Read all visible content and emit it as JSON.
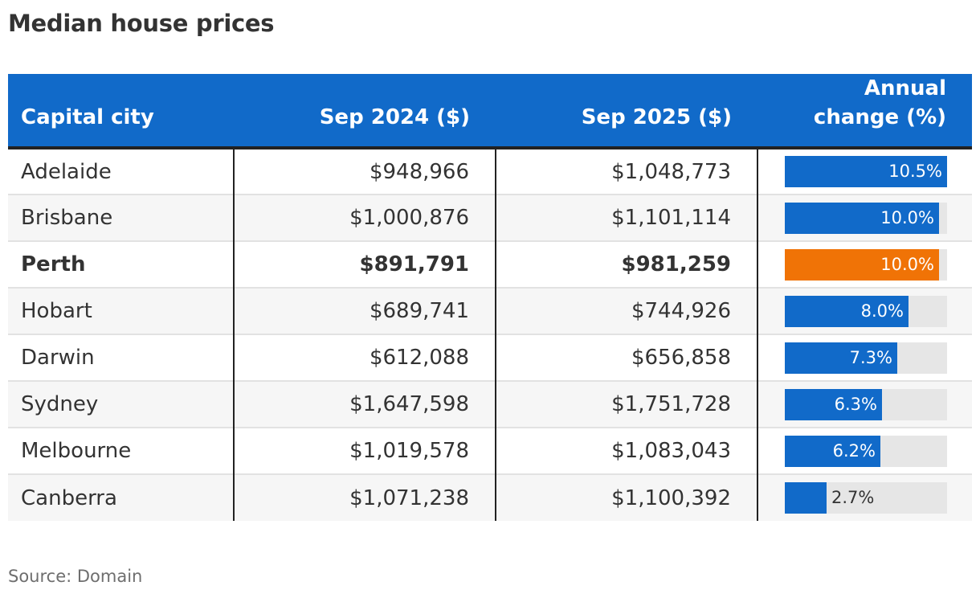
{
  "title": "Median house prices",
  "source": "Source: Domain",
  "colors": {
    "header": "#116ac9",
    "bar": "#116ac9",
    "highlight_bar": "#f07306",
    "track": "#e6e6e6"
  },
  "chart_data": {
    "type": "table",
    "title": "Median house prices",
    "columns": [
      "Capital city",
      "Sep 2024 ($)",
      "Sep 2025 ($)",
      "Annual change (%)"
    ],
    "bar_max": 10.5,
    "rows": [
      {
        "city": "Adelaide",
        "sep2024": "$948,966",
        "sep2025": "$1,048,773",
        "change": 10.5,
        "change_label": "10.5%",
        "highlight": false
      },
      {
        "city": "Brisbane",
        "sep2024": "$1,000,876",
        "sep2025": "$1,101,114",
        "change": 10.0,
        "change_label": "10.0%",
        "highlight": false
      },
      {
        "city": "Perth",
        "sep2024": "$891,791",
        "sep2025": "$981,259",
        "change": 10.0,
        "change_label": "10.0%",
        "highlight": true
      },
      {
        "city": "Hobart",
        "sep2024": "$689,741",
        "sep2025": "$744,926",
        "change": 8.0,
        "change_label": "8.0%",
        "highlight": false
      },
      {
        "city": "Darwin",
        "sep2024": "$612,088",
        "sep2025": "$656,858",
        "change": 7.3,
        "change_label": "7.3%",
        "highlight": false
      },
      {
        "city": "Sydney",
        "sep2024": "$1,647,598",
        "sep2025": "$1,751,728",
        "change": 6.3,
        "change_label": "6.3%",
        "highlight": false
      },
      {
        "city": "Melbourne",
        "sep2024": "$1,019,578",
        "sep2025": "$1,083,043",
        "change": 6.2,
        "change_label": "6.2%",
        "highlight": false
      },
      {
        "city": "Canberra",
        "sep2024": "$1,071,238",
        "sep2025": "$1,100,392",
        "change": 2.7,
        "change_label": "2.7%",
        "highlight": false
      }
    ]
  }
}
